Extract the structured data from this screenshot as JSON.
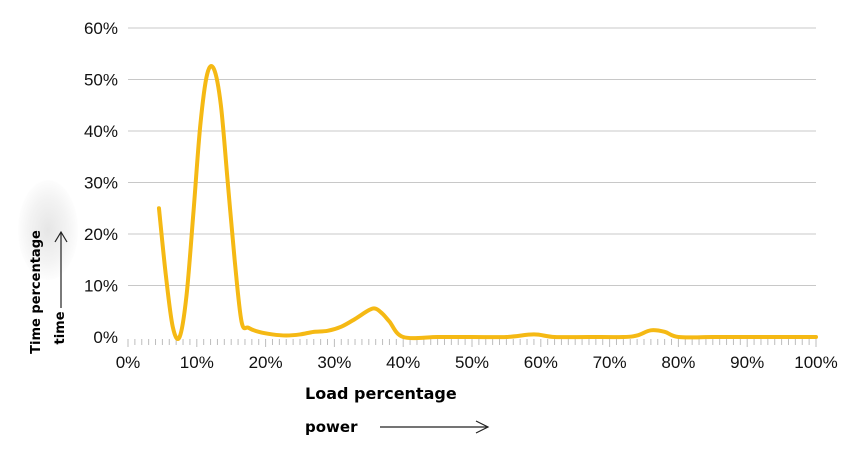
{
  "chart_data": {
    "type": "line",
    "color": "#f5b914",
    "gridlines": true,
    "xlim": [
      0,
      100
    ],
    "ylim": [
      0,
      60
    ],
    "x_ticks": [
      "0%",
      "10%",
      "20%",
      "30%",
      "40%",
      "50%",
      "60%",
      "70%",
      "80%",
      "90%",
      "100%"
    ],
    "y_ticks": [
      "0%",
      "10%",
      "20%",
      "30%",
      "40%",
      "50%",
      "60%"
    ],
    "xlabel": "Load percentage",
    "xlabel_sub": "power",
    "ylabel": "Time percentage",
    "ylabel_sub": "time",
    "series": [
      {
        "x": [
          4.5,
          5.5,
          6.5,
          7.5,
          8.5,
          9.5,
          10.5,
          11.5,
          12.5,
          13.5,
          14.5,
          15.5,
          16.5,
          17.5,
          19,
          21,
          23,
          25,
          27,
          29,
          31,
          33,
          35,
          36,
          37,
          38,
          40,
          45,
          50,
          55,
          59,
          62,
          67,
          72,
          74,
          76,
          78,
          80,
          85,
          90,
          95,
          100
        ],
        "y": [
          25,
          12,
          2,
          0,
          8,
          24,
          41,
          51,
          52,
          45,
          30,
          15,
          3,
          1.8,
          1,
          0.5,
          0.3,
          0.5,
          1,
          1.2,
          2,
          3.5,
          5.2,
          5.5,
          4.5,
          3,
          0,
          0,
          0,
          0,
          0.5,
          0,
          0,
          0,
          0.3,
          1.3,
          1,
          0,
          0,
          0,
          0,
          0
        ]
      }
    ]
  }
}
